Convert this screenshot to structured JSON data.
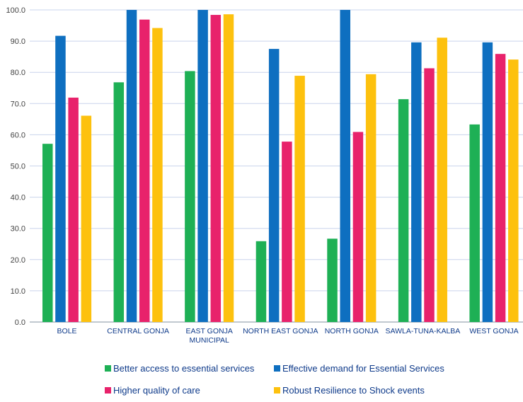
{
  "chart_data": {
    "type": "bar",
    "title": "",
    "xlabel": "",
    "ylabel": "",
    "ylim": [
      0,
      100
    ],
    "yticks": [
      "0.0",
      "10.0",
      "20.0",
      "30.0",
      "40.0",
      "50.0",
      "60.0",
      "70.0",
      "80.0",
      "90.0",
      "100.0"
    ],
    "grid": true,
    "legend_position": "bottom",
    "categories": [
      [
        "BOLE"
      ],
      [
        "CENTRAL GONJA"
      ],
      [
        "EAST GONJA",
        "MUNICIPAL"
      ],
      [
        "NORTH EAST GONJA"
      ],
      [
        "NORTH GONJA"
      ],
      [
        "SAWLA-TUNA-KALBA"
      ],
      [
        "WEST GONJA"
      ]
    ],
    "series": [
      {
        "name": "Better access to essential services",
        "color": "#1eb055",
        "values": [
          57.1,
          76.8,
          80.4,
          25.9,
          26.7,
          71.4,
          63.3
        ]
      },
      {
        "name": "Effective demand for Essential Services",
        "color": "#0e6fc0",
        "values": [
          91.7,
          100.0,
          100.0,
          87.5,
          100.0,
          89.6,
          89.6
        ]
      },
      {
        "name": "Higher quality of care",
        "color": "#e8226b",
        "values": [
          71.9,
          96.9,
          98.4,
          57.8,
          60.9,
          81.3,
          85.9
        ]
      },
      {
        "name": "Robust Resilience to Shock events",
        "color": "#fdc10e",
        "values": [
          66.1,
          94.2,
          98.6,
          78.9,
          79.4,
          91.1,
          84.1
        ]
      }
    ]
  }
}
